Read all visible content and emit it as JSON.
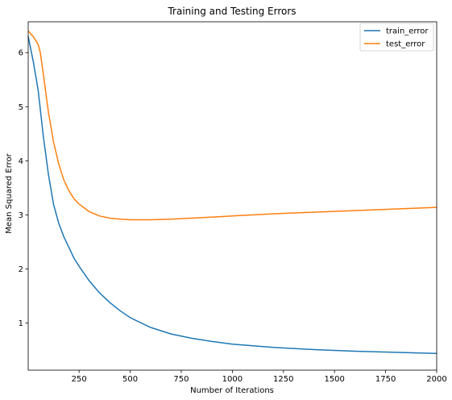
{
  "chart_data": {
    "type": "line",
    "title": "Training and Testing Errors",
    "xlabel": "Number of Iterations",
    "ylabel": "Mean Squared Error",
    "xlim": [
      1,
      2000
    ],
    "ylim": [
      0.13,
      6.57
    ],
    "xticks": [
      250,
      500,
      750,
      1000,
      1250,
      1500,
      1750,
      2000
    ],
    "yticks": [
      1,
      2,
      3,
      4,
      5,
      6
    ],
    "grid": false,
    "legend_position": "top-right",
    "series": [
      {
        "name": "train_error",
        "color": "#1f77b4",
        "x": [
          1,
          25,
          50,
          75,
          100,
          125,
          150,
          175,
          200,
          225,
          250,
          300,
          350,
          400,
          450,
          500,
          600,
          700,
          800,
          900,
          1000,
          1200,
          1400,
          1600,
          1800,
          2000
        ],
        "y": [
          6.3,
          5.85,
          5.3,
          4.45,
          3.75,
          3.2,
          2.85,
          2.6,
          2.4,
          2.2,
          2.05,
          1.78,
          1.56,
          1.38,
          1.23,
          1.1,
          0.92,
          0.8,
          0.72,
          0.66,
          0.61,
          0.55,
          0.51,
          0.48,
          0.46,
          0.44
        ]
      },
      {
        "name": "test_error",
        "color": "#ff7f0e",
        "x": [
          1,
          25,
          50,
          60,
          75,
          100,
          125,
          150,
          175,
          200,
          225,
          250,
          300,
          350,
          400,
          450,
          500,
          550,
          600,
          700,
          800,
          900,
          1000,
          1200,
          1400,
          1600,
          1800,
          2000
        ],
        "y": [
          6.4,
          6.3,
          6.15,
          6.0,
          5.6,
          4.9,
          4.35,
          3.95,
          3.65,
          3.45,
          3.3,
          3.2,
          3.06,
          2.98,
          2.94,
          2.92,
          2.91,
          2.91,
          2.91,
          2.92,
          2.94,
          2.96,
          2.98,
          3.02,
          3.05,
          3.08,
          3.11,
          3.14
        ]
      }
    ]
  }
}
